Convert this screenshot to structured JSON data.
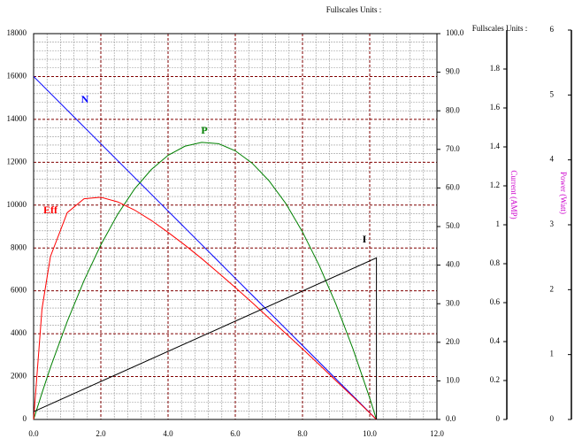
{
  "chart_data": {
    "type": "line",
    "fullscale_label": "Fullscales Units :",
    "x": [
      0,
      0.25,
      0.5,
      1,
      1.5,
      2,
      2.5,
      3,
      3.5,
      4,
      4.5,
      5,
      5.5,
      6,
      6.5,
      7,
      7.5,
      8,
      8.5,
      9,
      9.5,
      10,
      10.2
    ],
    "series": [
      {
        "name": "N",
        "color": "#0000ff",
        "axis": "y",
        "values": [
          16000,
          15608,
          15216,
          14431,
          13647,
          12863,
          12078,
          11294,
          10510,
          9725,
          8941,
          8157,
          7373,
          6588,
          5804,
          5020,
          4235,
          3451,
          2667,
          1882,
          1098,
          314,
          0
        ]
      },
      {
        "name": "P",
        "color": "#008000",
        "axis": "y4",
        "values": [
          0,
          0.41,
          0.8,
          1.51,
          2.14,
          2.69,
          3.16,
          3.55,
          3.85,
          4.07,
          4.21,
          4.27,
          4.25,
          4.14,
          3.95,
          3.68,
          3.33,
          2.89,
          2.37,
          1.77,
          1.09,
          0.33,
          0
        ]
      },
      {
        "name": "Eff",
        "color": "#ff0000",
        "axis": "y2",
        "values": [
          0,
          28.7,
          42.2,
          53.6,
          57.2,
          57.6,
          56.4,
          54.3,
          51.6,
          48.5,
          45.2,
          41.7,
          38.0,
          34.2,
          30.3,
          26.3,
          22.3,
          18.3,
          14.2,
          10.0,
          5.9,
          1.7,
          0
        ]
      },
      {
        "name": "I",
        "color": "#000000",
        "axis": "y3",
        "x": [
          0,
          10.2,
          10.2
        ],
        "values": [
          0.04,
          0.83,
          0
        ]
      }
    ],
    "xlim": [
      0,
      12
    ],
    "xticks": [
      {
        "value": 0,
        "label": "0.0"
      },
      {
        "value": 2,
        "label": "2.0"
      },
      {
        "value": 4,
        "label": "4.0"
      },
      {
        "value": 6,
        "label": "6.0"
      },
      {
        "value": 8,
        "label": "8.0"
      },
      {
        "value": 10,
        "label": "10.0"
      },
      {
        "value": 12,
        "label": "12.0"
      }
    ],
    "ylim": [
      0,
      18000
    ],
    "yticks": [
      0,
      2000,
      4000,
      6000,
      8000,
      10000,
      12000,
      14000,
      16000,
      18000
    ],
    "y2lim": [
      0,
      100
    ],
    "y2ticks": [
      {
        "value": 0,
        "label": "0.0"
      },
      {
        "value": 10,
        "label": "10.0"
      },
      {
        "value": 20,
        "label": "20.0"
      },
      {
        "value": 30,
        "label": "30.0"
      },
      {
        "value": 40,
        "label": "40.0"
      },
      {
        "value": 50,
        "label": "50.0"
      },
      {
        "value": 60,
        "label": "60.0"
      },
      {
        "value": 70,
        "label": "70.0"
      },
      {
        "value": 80,
        "label": "80.0"
      },
      {
        "value": 90,
        "label": "90.0"
      },
      {
        "value": 100,
        "label": "100.0"
      }
    ],
    "y3label": "Current (AMP)",
    "y3lim": [
      0,
      2
    ],
    "y3ticks": [
      0,
      0.2,
      0.4,
      0.6,
      0.8,
      1,
      1.2,
      1.4,
      1.6,
      1.8
    ],
    "y4label": "Power (Watt)",
    "y4lim": [
      0,
      6
    ],
    "y4ticks": [
      0,
      1,
      2,
      3,
      4,
      5,
      6
    ],
    "grid": true
  }
}
